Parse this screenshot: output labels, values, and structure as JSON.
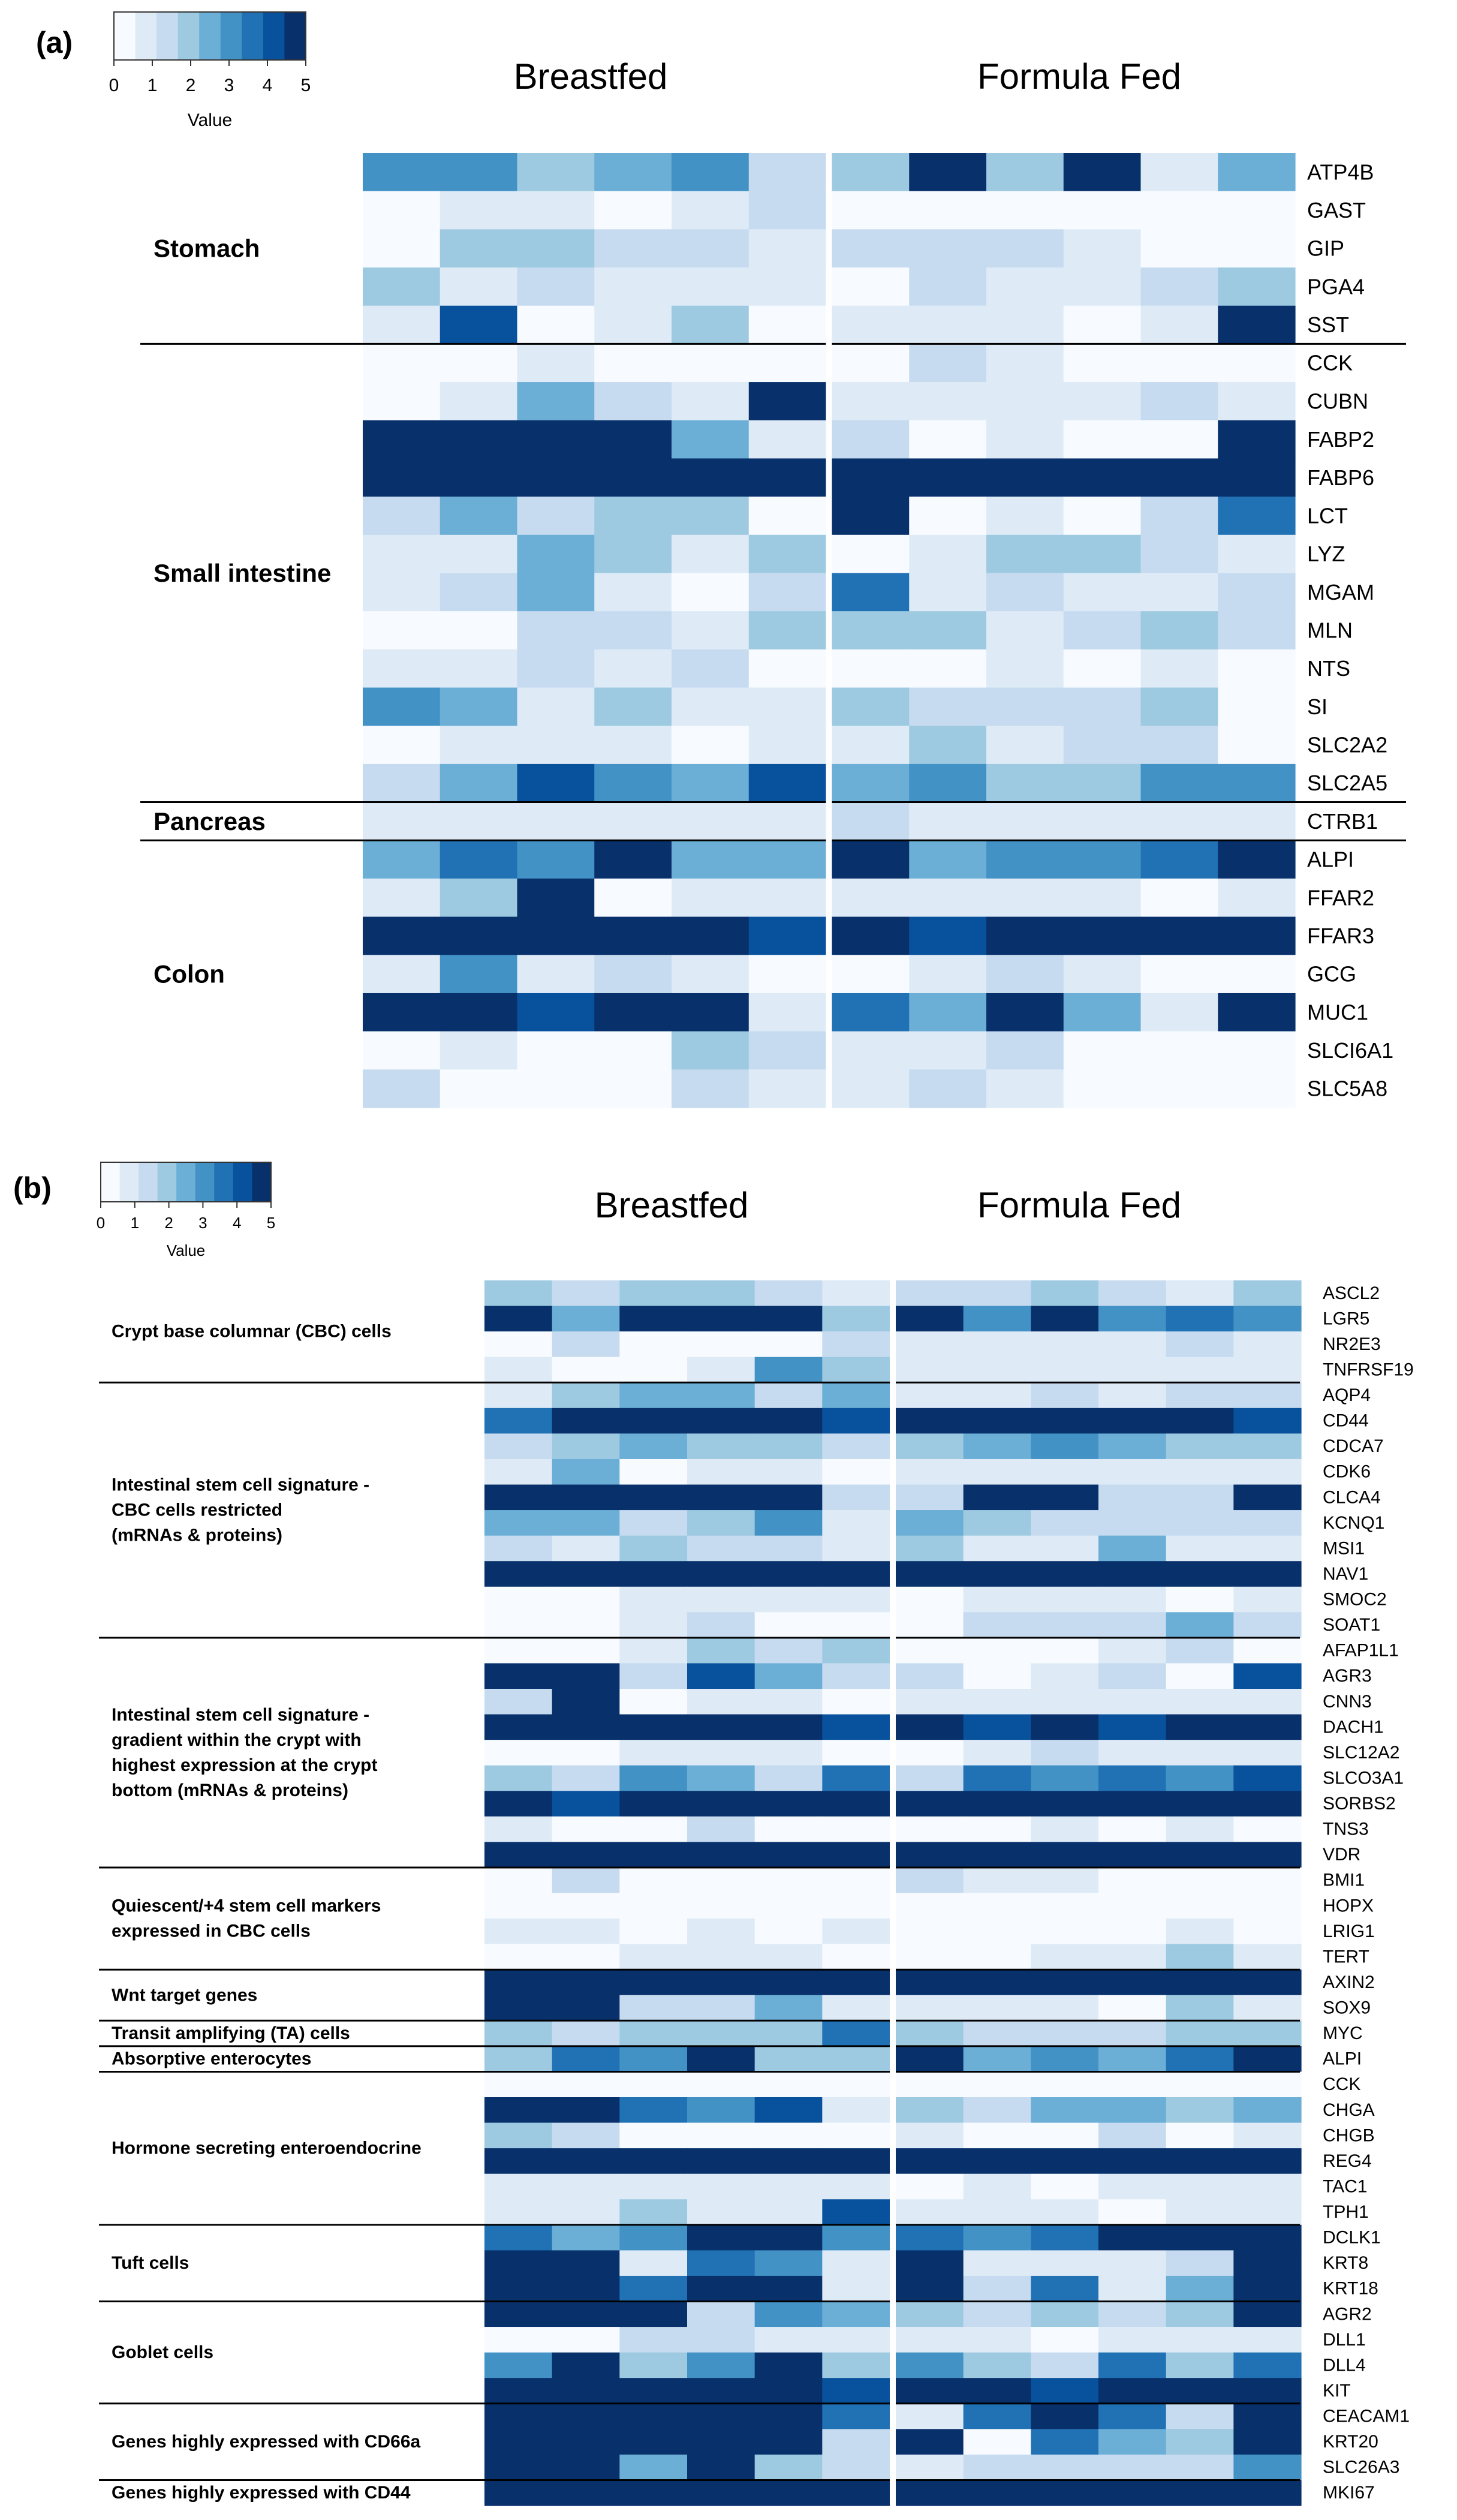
{
  "colors": {
    "scale": [
      "#f7fbff",
      "#deebf7",
      "#c6dbef",
      "#9ecae1",
      "#6baed6",
      "#4292c6",
      "#2171b5",
      "#08519c",
      "#08306b"
    ]
  },
  "chart_data": [
    {
      "panel": "(a)",
      "type": "heatmap",
      "legend": {
        "title": "Value",
        "ticks": [
          "0",
          "1",
          "2",
          "3",
          "4",
          "5"
        ],
        "range": [
          0,
          5
        ]
      },
      "groups": [
        "Breastfed",
        "Formula Fed"
      ],
      "samples_per_group": 6,
      "sections": [
        {
          "label": "Stomach",
          "genes": [
            "ATP4B",
            "GAST",
            "GIP",
            "PGA4",
            "SST"
          ]
        },
        {
          "label": "Small intestine",
          "genes": [
            "CCK",
            "CUBN",
            "FABP2",
            "FABP6",
            "LCT",
            "LYZ",
            "MGAM",
            "MLN",
            "NTS",
            "SI",
            "SLC2A2",
            "SLC2A5"
          ]
        },
        {
          "label": "Pancreas",
          "genes": [
            "CTRB1"
          ]
        },
        {
          "label": "Colon",
          "genes": [
            "ALPI",
            "FFAR2",
            "FFAR3",
            "GCG",
            "MUC1",
            "SLCI6A1",
            "SLC5A8"
          ]
        }
      ],
      "values": [
        [
          3.2,
          3.2,
          2.0,
          2.8,
          3.4,
          1.2,
          2.0,
          5.0,
          1.8,
          5.0,
          0.4,
          2.2
        ],
        [
          0.1,
          0.5,
          0.6,
          0.1,
          0.5,
          1.2,
          0.1,
          0.3,
          0.1,
          0.3,
          0.3,
          0.1
        ],
        [
          0.3,
          1.8,
          1.8,
          1.0,
          1.0,
          0.6,
          1.0,
          1.0,
          1.0,
          0.4,
          0.1,
          0.1
        ],
        [
          1.8,
          0.5,
          1.2,
          0.6,
          0.5,
          0.8,
          0.1,
          1.0,
          0.4,
          0.4,
          1.0,
          2.0
        ],
        [
          0.5,
          4.5,
          0.1,
          0.5,
          2.0,
          0.1,
          0.4,
          0.4,
          0.4,
          0.1,
          0.6,
          5.0
        ],
        [
          0.1,
          0.1,
          0.5,
          0.1,
          0.1,
          0.1,
          0.2,
          1.0,
          0.4,
          0.1,
          0.1,
          0.1
        ],
        [
          0.1,
          0.5,
          2.5,
          1.0,
          0.5,
          5.0,
          0.5,
          0.5,
          0.5,
          0.5,
          1.0,
          0.4
        ],
        [
          5.0,
          5.0,
          5.0,
          5.0,
          2.5,
          0.8,
          1.0,
          0.1,
          0.5,
          0.1,
          0.1,
          5.0
        ],
        [
          5.0,
          5.0,
          5.0,
          5.0,
          5.0,
          5.0,
          5.0,
          5.0,
          5.0,
          5.0,
          5.0,
          5.0
        ],
        [
          1.2,
          2.5,
          1.0,
          1.8,
          1.8,
          0.1,
          5.0,
          0.1,
          0.5,
          0.3,
          1.2,
          3.8
        ],
        [
          0.5,
          0.5,
          2.5,
          1.8,
          0.5,
          1.8,
          0.3,
          0.5,
          1.8,
          1.8,
          1.0,
          0.5
        ],
        [
          0.5,
          1.2,
          2.5,
          0.5,
          0.1,
          1.0,
          3.8,
          0.5,
          1.0,
          0.5,
          0.5,
          1.0
        ],
        [
          0.1,
          0.1,
          1.0,
          1.0,
          0.5,
          1.8,
          1.8,
          1.8,
          0.5,
          1.0,
          1.8,
          1.0
        ],
        [
          0.4,
          0.4,
          1.0,
          0.5,
          1.0,
          0.1,
          0.1,
          0.1,
          0.4,
          0.1,
          0.4,
          0.1
        ],
        [
          3.2,
          2.5,
          0.5,
          1.8,
          0.5,
          0.5,
          1.8,
          1.0,
          1.0,
          1.0,
          2.0,
          0.1
        ],
        [
          0.1,
          0.4,
          0.4,
          0.4,
          0.1,
          0.4,
          0.4,
          2.0,
          0.5,
          1.0,
          1.0,
          0.1
        ],
        [
          1.0,
          2.5,
          4.5,
          3.2,
          2.5,
          4.5,
          2.5,
          3.2,
          1.8,
          1.8,
          3.2,
          3.2
        ],
        [
          0.5,
          0.5,
          0.5,
          0.5,
          0.5,
          0.5,
          1.0,
          0.5,
          0.5,
          0.5,
          0.5,
          0.5
        ],
        [
          2.5,
          3.8,
          3.2,
          5.0,
          2.5,
          2.5,
          5.0,
          2.5,
          3.2,
          3.2,
          3.8,
          5.0
        ],
        [
          0.4,
          2.0,
          5.0,
          0.1,
          0.5,
          0.4,
          0.4,
          0.5,
          0.5,
          0.5,
          0.1,
          0.4
        ],
        [
          5.0,
          5.0,
          5.0,
          5.0,
          5.0,
          4.5,
          5.0,
          4.5,
          5.0,
          5.0,
          5.0,
          5.0
        ],
        [
          0.5,
          3.2,
          0.5,
          1.0,
          0.5,
          0.1,
          0.1,
          0.5,
          1.0,
          0.5,
          0.1,
          0.1
        ],
        [
          5.0,
          5.0,
          4.5,
          5.0,
          5.0,
          0.5,
          3.8,
          2.5,
          5.0,
          2.5,
          0.5,
          5.0
        ],
        [
          0.1,
          0.5,
          0.1,
          0.1,
          1.8,
          1.0,
          0.4,
          0.4,
          1.0,
          0.1,
          0.1,
          0.1
        ],
        [
          1.0,
          0.1,
          0.1,
          0.1,
          1.0,
          0.4,
          0.4,
          1.0,
          0.4,
          0.1,
          0.1,
          0.1
        ]
      ]
    },
    {
      "panel": "(b)",
      "type": "heatmap",
      "legend": {
        "title": "Value",
        "ticks": [
          "0",
          "1",
          "2",
          "3",
          "4",
          "5"
        ],
        "range": [
          0,
          5
        ]
      },
      "groups": [
        "Breastfed",
        "Formula Fed"
      ],
      "samples_per_group": 6,
      "sections": [
        {
          "label": [
            "Crypt base columnar (CBC) cells"
          ],
          "genes": [
            "ASCL2",
            "LGR5",
            "NR2E3",
            "TNFRSF19"
          ]
        },
        {
          "label": [
            "Intestinal stem cell signature -",
            "CBC cells restricted",
            "(mRNAs & proteins)"
          ],
          "genes": [
            "AQP4",
            "CD44",
            "CDCA7",
            "CDK6",
            "CLCA4",
            "KCNQ1",
            "MSI1",
            "NAV1",
            "SMOC2",
            "SOAT1"
          ]
        },
        {
          "label": [
            "Intestinal stem cell signature -",
            "gradient within the crypt with",
            "highest expression at the crypt",
            "bottom (mRNAs & proteins)"
          ],
          "genes": [
            "AFAP1L1",
            "AGR3",
            "CNN3",
            "DACH1",
            "SLC12A2",
            "SLCO3A1",
            "SORBS2",
            "TNS3",
            "VDR"
          ]
        },
        {
          "label": [
            "Quiescent/+4 stem cell markers",
            "expressed in CBC cells"
          ],
          "genes": [
            "BMI1",
            "HOPX",
            "LRIG1",
            "TERT"
          ]
        },
        {
          "label": [
            "Wnt target genes"
          ],
          "genes": [
            "AXIN2",
            "SOX9"
          ]
        },
        {
          "label": [
            "Transit amplifying (TA) cells"
          ],
          "genes": [
            "MYC"
          ]
        },
        {
          "label": [
            "Absorptive enterocytes"
          ],
          "genes": [
            "ALPI"
          ]
        },
        {
          "label": [
            "Hormone secreting enteroendocrine"
          ],
          "genes": [
            "CCK",
            "CHGA",
            "CHGB",
            "REG4",
            "TAC1",
            "TPH1"
          ]
        },
        {
          "label": [
            "Tuft cells"
          ],
          "genes": [
            "DCLK1",
            "KRT8",
            "KRT18"
          ]
        },
        {
          "label": [
            "Goblet cells"
          ],
          "genes": [
            "AGR2",
            "DLL1",
            "DLL4",
            "KIT"
          ]
        },
        {
          "label": [
            "Genes highly expressed with CD66a"
          ],
          "genes": [
            "CEACAM1",
            "KRT20",
            "SLC26A3"
          ]
        },
        {
          "label": [
            "Genes highly expressed with CD44"
          ],
          "genes": [
            "MKI67"
          ]
        }
      ],
      "values": [
        [
          1.8,
          1.0,
          1.8,
          1.8,
          1.0,
          0.4,
          1.0,
          1.0,
          1.8,
          1.0,
          0.5,
          1.8
        ],
        [
          5.0,
          2.5,
          5.0,
          5.0,
          5.0,
          1.8,
          5.0,
          3.2,
          5.0,
          3.2,
          3.8,
          3.2
        ],
        [
          0.1,
          1.0,
          0.1,
          0.1,
          0.1,
          1.0,
          0.4,
          0.4,
          0.4,
          0.4,
          1.0,
          0.4
        ],
        [
          0.5,
          0.1,
          0.1,
          0.5,
          3.2,
          1.8,
          0.5,
          0.5,
          0.5,
          0.5,
          0.5,
          0.5
        ],
        [
          0.4,
          1.8,
          2.5,
          2.5,
          1.0,
          2.5,
          0.4,
          0.4,
          1.0,
          0.4,
          1.0,
          1.0
        ],
        [
          3.8,
          5.0,
          5.0,
          5.0,
          5.0,
          4.5,
          5.0,
          5.0,
          5.0,
          5.0,
          5.0,
          4.5
        ],
        [
          1.0,
          1.8,
          2.5,
          1.8,
          1.8,
          1.0,
          1.8,
          2.5,
          3.2,
          2.5,
          1.8,
          1.8
        ],
        [
          0.5,
          2.5,
          0.1,
          0.5,
          0.5,
          0.1,
          0.5,
          0.5,
          0.5,
          0.5,
          0.5,
          0.5
        ],
        [
          5.0,
          5.0,
          5.0,
          5.0,
          5.0,
          1.0,
          1.0,
          5.0,
          5.0,
          1.0,
          1.0,
          5.0
        ],
        [
          2.5,
          2.5,
          1.0,
          1.8,
          3.2,
          0.5,
          2.5,
          1.8,
          1.0,
          1.0,
          1.0,
          1.0
        ],
        [
          1.0,
          0.5,
          1.8,
          1.0,
          1.0,
          0.5,
          1.8,
          0.5,
          0.5,
          2.5,
          0.5,
          0.5
        ],
        [
          5.0,
          5.0,
          5.0,
          5.0,
          5.0,
          5.0,
          5.0,
          5.0,
          5.0,
          5.0,
          5.0,
          5.0
        ],
        [
          0.1,
          0.1,
          0.5,
          0.5,
          0.5,
          0.5,
          0.1,
          0.5,
          0.5,
          0.5,
          0.1,
          0.5
        ],
        [
          0.1,
          0.1,
          0.5,
          1.0,
          0.1,
          0.1,
          0.1,
          1.0,
          1.0,
          1.0,
          2.5,
          1.0
        ],
        [
          0.1,
          0.1,
          0.5,
          1.8,
          1.0,
          1.8,
          0.1,
          0.1,
          0.1,
          0.5,
          1.0,
          0.1
        ],
        [
          5.0,
          5.0,
          1.0,
          4.5,
          2.5,
          1.0,
          1.0,
          0.1,
          0.5,
          1.0,
          0.1,
          4.5
        ],
        [
          1.0,
          5.0,
          0.1,
          0.5,
          0.5,
          0.1,
          0.5,
          0.5,
          0.5,
          0.5,
          0.5,
          0.5
        ],
        [
          5.0,
          5.0,
          5.0,
          5.0,
          5.0,
          4.5,
          5.0,
          4.5,
          5.0,
          4.5,
          5.0,
          5.0
        ],
        [
          0.1,
          0.1,
          0.5,
          0.5,
          0.5,
          0.1,
          0.1,
          0.5,
          1.0,
          0.5,
          0.5,
          0.5
        ],
        [
          1.8,
          1.0,
          3.2,
          2.5,
          1.0,
          3.8,
          1.0,
          3.8,
          3.2,
          3.8,
          3.2,
          4.5
        ],
        [
          5.0,
          4.5,
          5.0,
          5.0,
          5.0,
          5.0,
          5.0,
          5.0,
          5.0,
          5.0,
          5.0,
          5.0
        ],
        [
          0.5,
          0.1,
          0.1,
          1.0,
          0.1,
          0.1,
          0.1,
          0.1,
          0.5,
          0.1,
          0.5,
          0.1
        ],
        [
          5.0,
          5.0,
          5.0,
          5.0,
          5.0,
          5.0,
          5.0,
          5.0,
          5.0,
          5.0,
          5.0,
          5.0
        ],
        [
          0.1,
          1.0,
          0.1,
          0.1,
          0.1,
          0.1,
          1.0,
          0.5,
          0.5,
          0.1,
          0.1,
          0.1
        ],
        [
          0.1,
          0.1,
          0.1,
          0.1,
          0.1,
          0.1,
          0.1,
          0.1,
          0.1,
          0.1,
          0.1,
          0.1
        ],
        [
          0.5,
          0.5,
          0.1,
          0.5,
          0.1,
          0.5,
          0.1,
          0.1,
          0.1,
          0.1,
          0.5,
          0.1
        ],
        [
          0.1,
          0.1,
          0.5,
          0.5,
          0.5,
          0.1,
          0.1,
          0.1,
          0.5,
          0.5,
          1.8,
          0.5
        ],
        [
          5.0,
          5.0,
          5.0,
          5.0,
          5.0,
          5.0,
          5.0,
          5.0,
          5.0,
          5.0,
          5.0,
          5.0
        ],
        [
          5.0,
          5.0,
          1.0,
          1.0,
          2.5,
          0.5,
          0.5,
          0.5,
          0.5,
          0.1,
          1.8,
          0.5
        ],
        [
          1.8,
          1.0,
          1.8,
          1.8,
          1.8,
          3.8,
          1.8,
          1.0,
          1.0,
          1.0,
          1.8,
          1.8
        ],
        [
          1.8,
          3.8,
          3.2,
          5.0,
          1.8,
          1.8,
          5.0,
          2.5,
          3.2,
          2.5,
          3.8,
          5.0
        ],
        [
          0.1,
          0.1,
          0.1,
          0.1,
          0.1,
          0.1,
          0.1,
          0.1,
          0.1,
          0.1,
          0.1,
          0.1
        ],
        [
          5.0,
          5.0,
          3.8,
          3.2,
          4.5,
          0.5,
          1.8,
          1.0,
          2.5,
          2.5,
          1.8,
          2.5
        ],
        [
          1.8,
          1.0,
          0.1,
          0.1,
          0.1,
          0.1,
          0.5,
          0.1,
          0.1,
          1.0,
          0.1,
          0.5
        ],
        [
          5.0,
          5.0,
          5.0,
          5.0,
          5.0,
          5.0,
          5.0,
          5.0,
          5.0,
          5.0,
          5.0,
          5.0
        ],
        [
          0.5,
          0.5,
          0.5,
          0.5,
          0.5,
          0.5,
          0.1,
          0.5,
          0.1,
          0.5,
          0.5,
          0.5
        ],
        [
          0.5,
          0.5,
          1.8,
          0.5,
          0.5,
          4.5,
          0.5,
          0.5,
          0.5,
          0.1,
          0.5,
          0.5
        ],
        [
          3.8,
          2.5,
          3.2,
          5.0,
          5.0,
          3.2,
          3.8,
          3.2,
          3.8,
          5.0,
          5.0,
          5.0
        ],
        [
          5.0,
          5.0,
          0.5,
          3.8,
          3.2,
          0.5,
          5.0,
          0.5,
          0.5,
          0.5,
          1.0,
          5.0
        ],
        [
          5.0,
          5.0,
          3.8,
          5.0,
          5.0,
          0.5,
          5.0,
          1.0,
          3.8,
          0.5,
          2.5,
          5.0
        ],
        [
          5.0,
          5.0,
          5.0,
          1.0,
          3.2,
          2.5,
          1.8,
          1.0,
          1.8,
          1.0,
          1.8,
          5.0
        ],
        [
          0.1,
          0.1,
          1.0,
          1.0,
          0.5,
          0.5,
          0.5,
          0.5,
          0.1,
          0.5,
          0.5,
          0.5
        ],
        [
          3.2,
          5.0,
          1.8,
          3.2,
          5.0,
          1.8,
          3.2,
          1.8,
          1.0,
          3.8,
          1.8,
          3.8
        ],
        [
          5.0,
          5.0,
          5.0,
          5.0,
          5.0,
          4.5,
          5.0,
          5.0,
          4.5,
          5.0,
          5.0,
          5.0
        ],
        [
          5.0,
          5.0,
          5.0,
          5.0,
          5.0,
          3.8,
          0.5,
          3.8,
          5.0,
          3.8,
          1.0,
          5.0
        ],
        [
          5.0,
          5.0,
          5.0,
          5.0,
          5.0,
          1.0,
          5.0,
          0.1,
          3.8,
          2.5,
          1.8,
          5.0
        ],
        [
          5.0,
          5.0,
          2.5,
          5.0,
          1.8,
          1.0,
          0.5,
          1.0,
          1.0,
          1.0,
          1.0,
          3.2
        ],
        [
          5.0,
          5.0,
          5.0,
          5.0,
          5.0,
          5.0,
          5.0,
          5.0,
          5.0,
          5.0,
          5.0,
          5.0
        ]
      ]
    }
  ]
}
